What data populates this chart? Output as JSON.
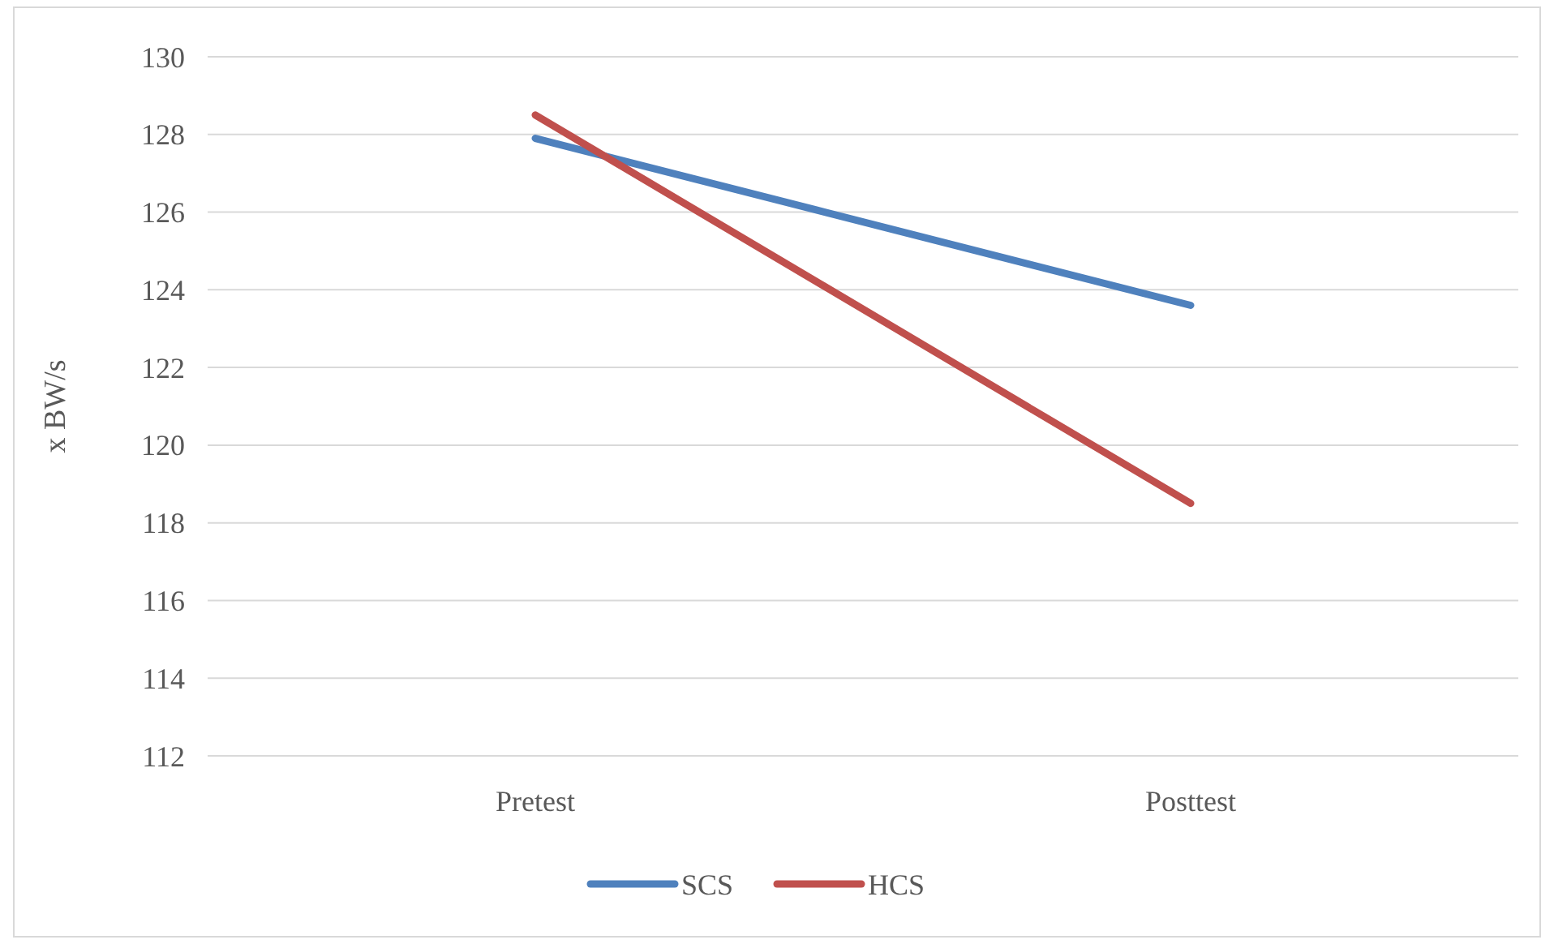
{
  "chart_data": {
    "type": "line",
    "ylabel": "x BW/s",
    "categories": [
      "Pretest",
      "Posttest"
    ],
    "series": [
      {
        "name": "SCS",
        "color": "#4f81bd",
        "values": [
          127.9,
          123.6
        ]
      },
      {
        "name": "HCS",
        "color": "#c0504d",
        "values": [
          128.5,
          118.5
        ]
      }
    ],
    "ylim": [
      112,
      130
    ],
    "yticks": [
      112,
      114,
      116,
      118,
      120,
      122,
      124,
      126,
      128,
      130
    ],
    "grid": "y",
    "legend": "bottom",
    "marker": "none",
    "line_style": "solid"
  }
}
